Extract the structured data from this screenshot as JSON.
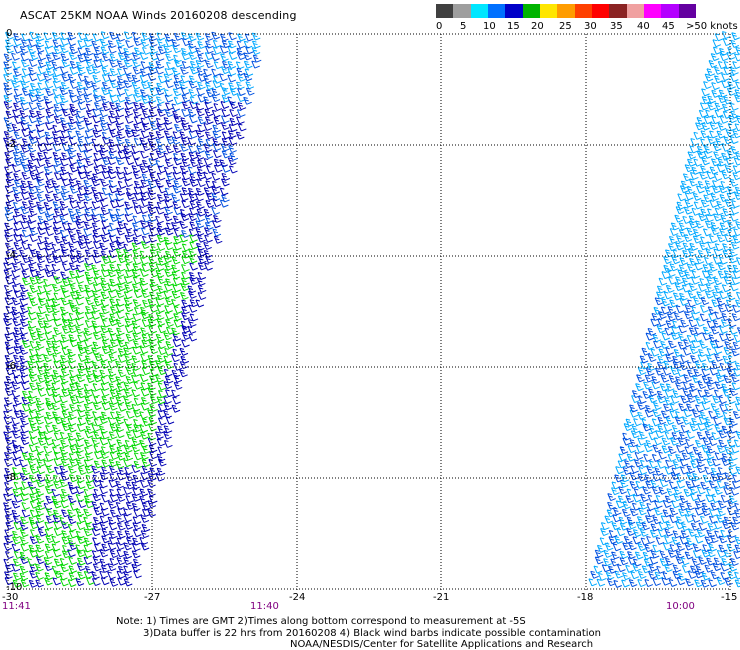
{
  "title": "ASCAT 25KM NOAA Winds 20160208 descending",
  "scale": {
    "labels": [
      "0",
      "5",
      "10",
      "15",
      "20",
      "25",
      "30",
      "35",
      "40",
      "45",
      ">50 knots"
    ],
    "colors": [
      "#404040",
      "#9e9e9e",
      "#00e6ff",
      "#0070ff",
      "#0000c8",
      "#00b400",
      "#ffe600",
      "#ff9c00",
      "#ff4000",
      "#ff0000",
      "#8b2323",
      "#f0a0a0",
      "#ff00ff",
      "#b400ff",
      "#6400a0"
    ],
    "barb_colors": {
      "light_blue": "#00a8ff",
      "mid_blue": "#0050e0",
      "dark_blue": "#0000b4",
      "green": "#00d800"
    }
  },
  "axes": {
    "lon_ticks": [
      "-30",
      "-27",
      "-24",
      "-21",
      "-18",
      "-15"
    ],
    "lat_ticks": [
      "0",
      "-2",
      "-4",
      "-6",
      "-8",
      "-10"
    ],
    "times": [
      "11:41",
      "11:40",
      "10:00"
    ],
    "axis_color": "#000000",
    "time_color": "#800080"
  },
  "notes": {
    "line1": "Note: 1) Times are GMT 2)Times along bottom correspond to measurement at -5S",
    "line2": "3)Data buffer is 22 hrs from 20160208 4) Black wind barbs indicate possible contamination",
    "line3": "NOAA/NESDIS/Center for Satellite Applications and Research"
  }
}
